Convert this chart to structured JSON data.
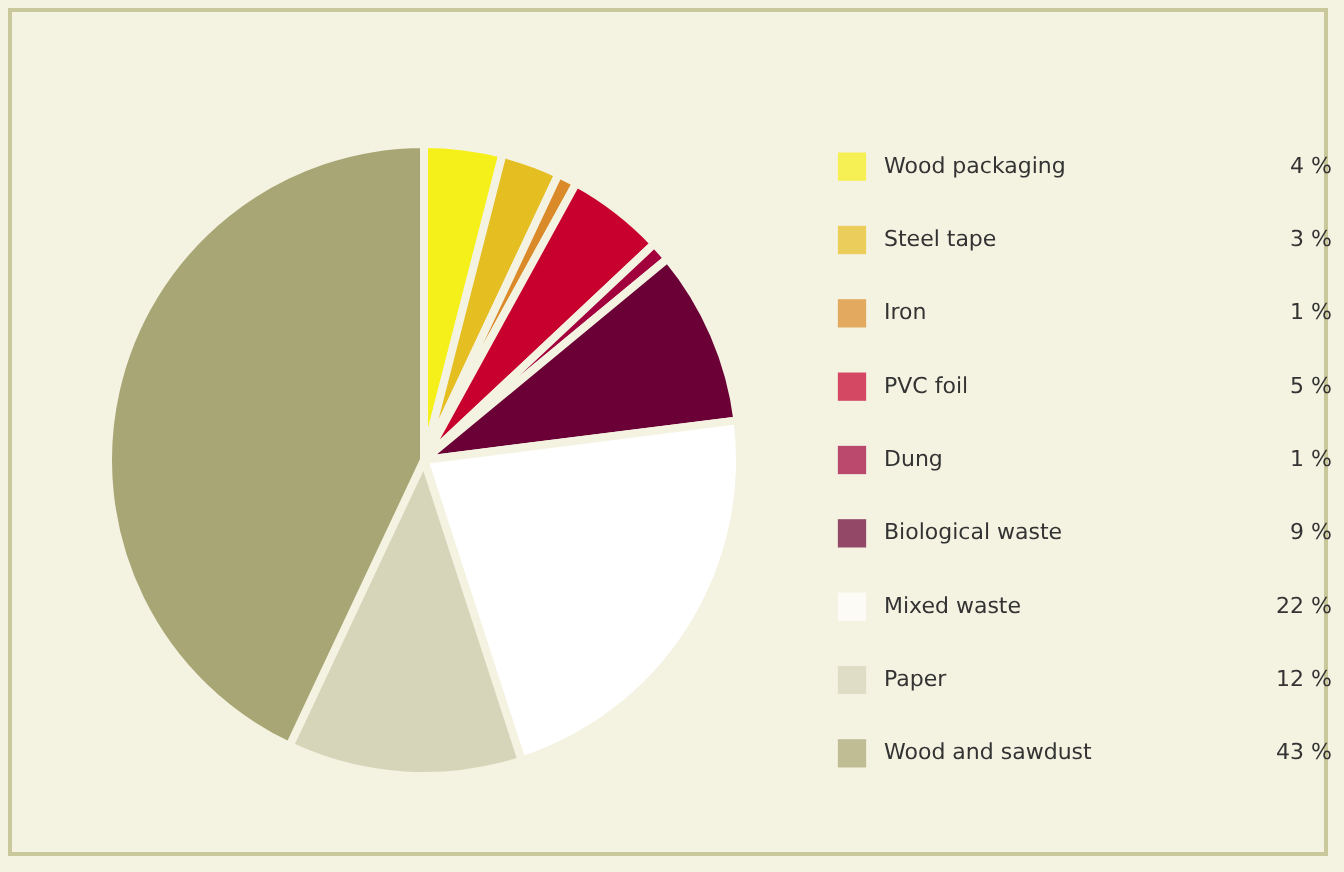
{
  "chart_data": {
    "type": "pie",
    "categories": [
      "Wood packaging",
      "Steel tape",
      "Iron",
      "PVC foil",
      "Dung",
      "Biological waste",
      "Mixed waste",
      "Paper",
      "Wood and sawdust"
    ],
    "values": [
      4,
      3,
      1,
      5,
      1,
      9,
      22,
      12,
      43
    ],
    "value_labels": [
      "4 %",
      "3 %",
      "1 %",
      "5 %",
      "1 %",
      "9 %",
      "22 %",
      "12 %",
      "43 %"
    ],
    "colors": [
      "#f6f01a",
      "#e5be22",
      "#da8a28",
      "#c8002e",
      "#a2003c",
      "#6a0035",
      "#ffffff",
      "#d6d4b9",
      "#a9a675"
    ],
    "legend": "right"
  }
}
